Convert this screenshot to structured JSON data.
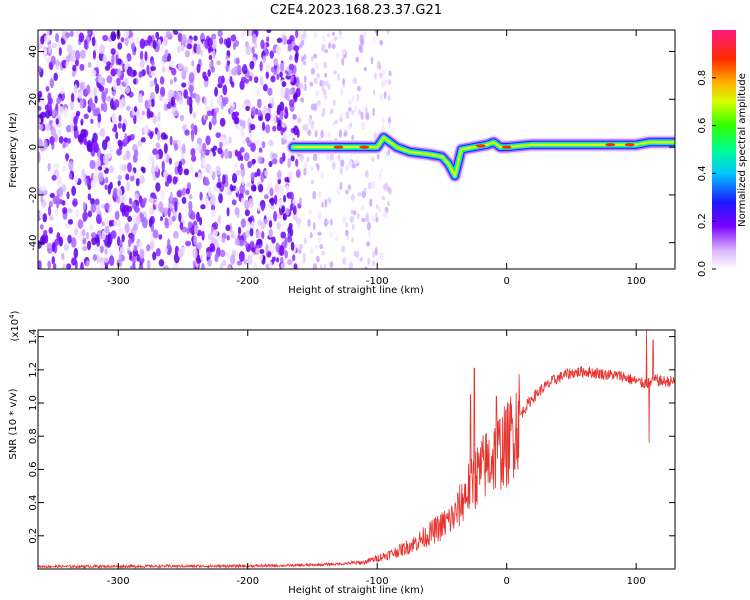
{
  "title": "C2E4.2023.168.23.37.G21",
  "chart_data": [
    {
      "type": "heatmap",
      "xlabel": "Height of straight line (km)",
      "ylabel": "Frequency (Hz)",
      "xlim": [
        -362,
        130
      ],
      "ylim": [
        -51,
        49
      ],
      "x_ticks": [
        -300,
        -200,
        -100,
        0,
        100
      ],
      "x_tick_labels": [
        "-300",
        "-200",
        "-100",
        "0",
        "100"
      ],
      "y_ticks": [
        -40,
        -20,
        0,
        20,
        40
      ],
      "y_tick_labels": [
        "-40",
        "-20",
        "0",
        "20",
        "40"
      ],
      "colorbar": {
        "label": "Normalized spectral amplitude",
        "range": [
          0,
          1
        ],
        "ticks": [
          0.0,
          0.2,
          0.4,
          0.6,
          0.8
        ],
        "tick_labels": [
          "0.0",
          "0.2",
          "0.4",
          "0.6",
          "0.8"
        ],
        "colormap": "rainbow (white-purple-blue-cyan-green-yellow-orange-red-pink)"
      },
      "features": {
        "noise_region_x": [
          -362,
          -160
        ],
        "sparse_noise_x": [
          -160,
          -90
        ],
        "signal_trace": {
          "x": [
            -165,
            -150,
            -130,
            -110,
            -100,
            -95,
            -85,
            -75,
            -60,
            -50,
            -45,
            -40,
            -35,
            -25,
            -15,
            -10,
            -5,
            0,
            20,
            50,
            80,
            100,
            110,
            130
          ],
          "y": [
            0,
            0,
            0,
            0,
            0,
            4,
            0,
            -2,
            -3,
            -4,
            -7,
            -12,
            -1,
            0,
            1,
            2,
            0,
            0,
            1,
            1,
            1,
            1,
            2,
            2
          ],
          "peak_intensity": 0.9
        }
      }
    },
    {
      "type": "line",
      "xlabel": "Height of straight line (km)",
      "ylabel": "SNR (10 * v/v)",
      "y_multiplier": "(x10",
      "y_multiplier_exp": "4",
      "y_multiplier_close": ")",
      "xlim": [
        -362,
        130
      ],
      "ylim": [
        0,
        14400
      ],
      "x_ticks": [
        -300,
        -200,
        -100,
        0,
        100
      ],
      "x_tick_labels": [
        "-300",
        "-200",
        "-100",
        "0",
        "100"
      ],
      "y_ticks": [
        2000,
        4000,
        6000,
        8000,
        10000,
        12000,
        14000
      ],
      "y_tick_labels": [
        "0.2",
        "0.4",
        "0.6",
        "0.8",
        "1.0",
        "1.2",
        "1.4"
      ],
      "color": "#e8322e",
      "series": [
        {
          "x": [
            -362,
            -300,
            -250,
            -200,
            -160,
            -130,
            -110,
            -100,
            -90,
            -80,
            -70,
            -60,
            -50,
            -40,
            -35,
            -30,
            -25,
            -20,
            -15,
            -10,
            -5,
            0,
            5,
            10,
            15,
            20,
            25,
            30,
            35,
            40,
            45,
            50,
            60,
            70,
            80,
            90,
            100,
            105,
            110,
            115,
            120,
            130
          ],
          "y": [
            150,
            160,
            170,
            180,
            220,
            300,
            400,
            650,
            900,
            1200,
            1600,
            2100,
            2600,
            3200,
            4000,
            4800,
            5400,
            5900,
            6400,
            6800,
            7200,
            7400,
            8300,
            9200,
            9800,
            10300,
            10700,
            11000,
            11300,
            11500,
            11700,
            11800,
            11900,
            11800,
            11700,
            11600,
            11300,
            11200,
            11200,
            11400,
            11300,
            11300
          ],
          "spikes": [
            {
              "x": -25,
              "y": 12100
            },
            {
              "x": -28,
              "y": 10500
            },
            {
              "x": -8,
              "y": 10400
            },
            {
              "x": 108,
              "y": 14400
            },
            {
              "x": 110,
              "y": 7600
            },
            {
              "x": 113,
              "y": 13800
            }
          ]
        }
      ]
    }
  ]
}
